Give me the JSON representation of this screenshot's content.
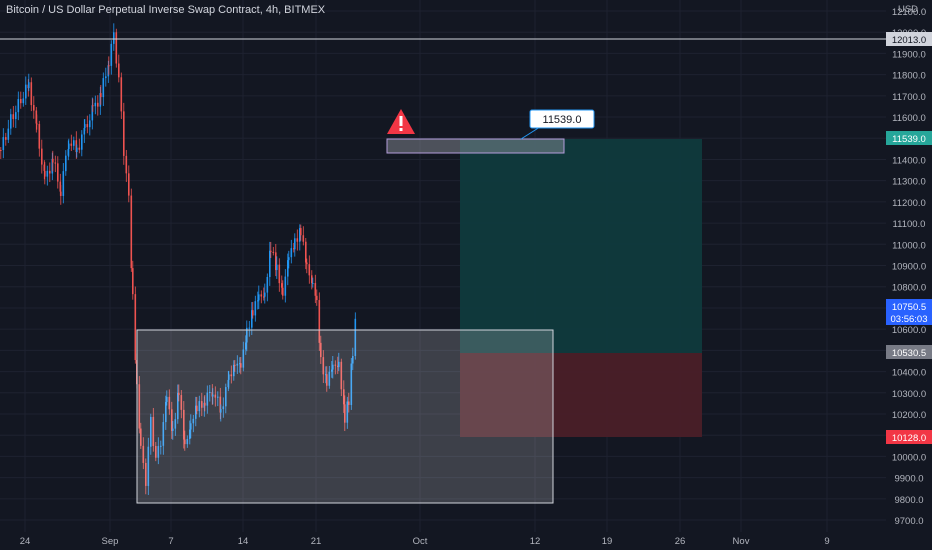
{
  "header": {
    "title": "Bitcoin / US Dollar Perpetual Inverse Swap Contract, 4h, BITMEX"
  },
  "price_axis": {
    "currency": "USD",
    "ticks": [
      "12100.0",
      "12000.0",
      "11900.0",
      "11800.0",
      "11700.0",
      "11600.0",
      "11500.0",
      "11400.0",
      "11300.0",
      "11200.0",
      "11100.0",
      "11000.0",
      "10900.0",
      "10800.0",
      "10700.0",
      "10600.0",
      "10500.0",
      "10400.0",
      "10300.0",
      "10200.0",
      "10100.0",
      "10000.0",
      "9900.0",
      "9800.0",
      "9700.0"
    ]
  },
  "time_axis": {
    "ticks": [
      "24",
      "Sep",
      "7",
      "14",
      "21",
      "Oct",
      "12",
      "19",
      "26",
      "Nov",
      "9"
    ]
  },
  "price_labels": {
    "hline": "12013.0",
    "target": "11539.0",
    "current": "10750.5",
    "countdown": "03:56:03",
    "entry": "10530.5",
    "stop": "10128.0"
  },
  "callout": {
    "text": "11539.0"
  },
  "colors": {
    "background": "#131722",
    "up": "#2196f3",
    "down": "#ef5350",
    "target_zone": "#0e3a3c",
    "stop_zone": "#4a1f26",
    "warning": "#f23645",
    "entry_tag": "#787b86",
    "target_tag": "#26a69a",
    "current_tag": "#2962ff"
  }
}
